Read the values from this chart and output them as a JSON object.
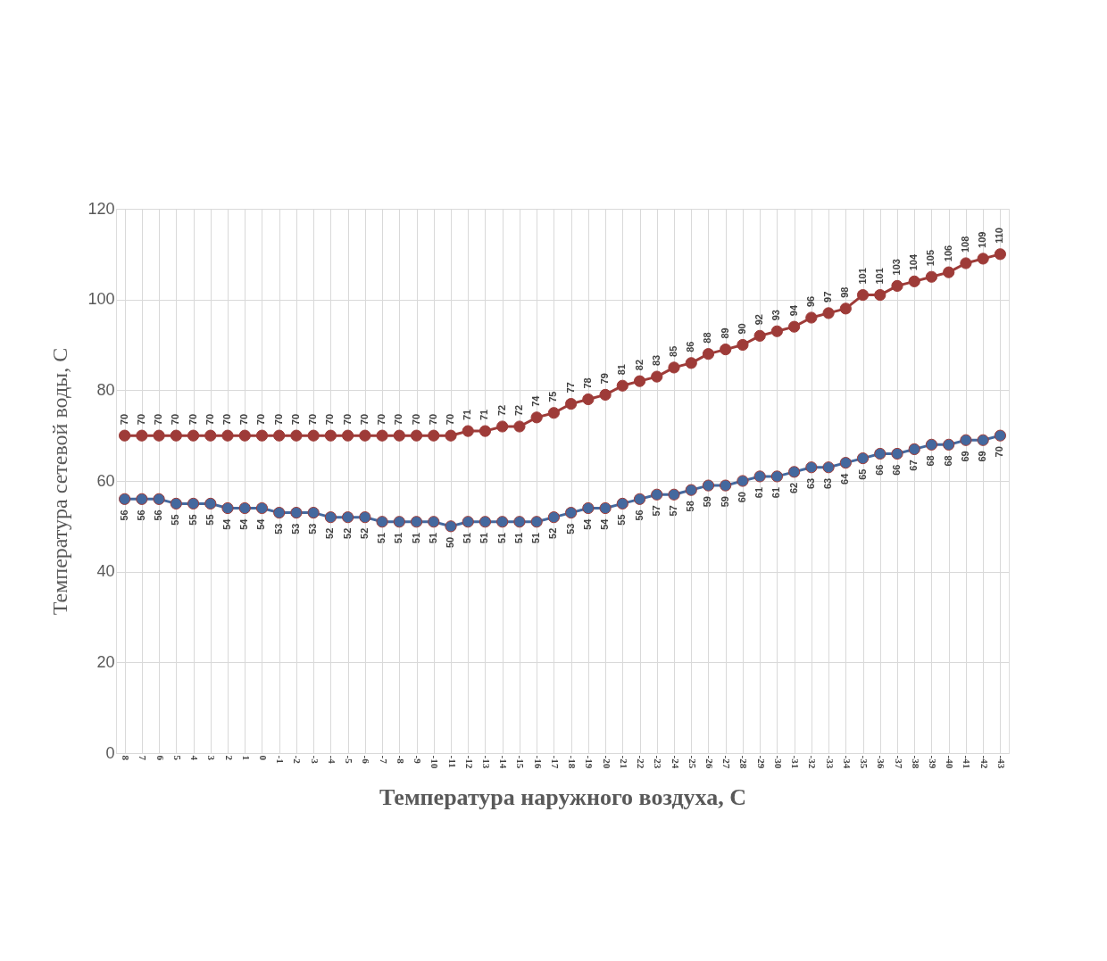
{
  "chart_data": {
    "type": "line",
    "xlabel": "Температура наружного воздуха, С",
    "ylabel": "Температура сетевой воды, С",
    "categories": [
      "8",
      "7",
      "6",
      "5",
      "4",
      "3",
      "2",
      "1",
      "0",
      "-1",
      "-2",
      "-3",
      "-4",
      "-5",
      "-6",
      "-7",
      "-8",
      "-9",
      "-10",
      "-11",
      "-12",
      "-13",
      "-14",
      "-15",
      "-16",
      "-17",
      "-18",
      "-19",
      "-20",
      "-21",
      "-22",
      "-23",
      "-24",
      "-25",
      "-26",
      "-27",
      "-28",
      "-29",
      "-30",
      "-31",
      "-32",
      "-33",
      "-34",
      "-35",
      "-36",
      "-37",
      "-38",
      "-39",
      "-40",
      "-41",
      "-42",
      "-43"
    ],
    "series": [
      {
        "color": "#9e3b38",
        "values": [
          70,
          70,
          70,
          70,
          70,
          70,
          70,
          70,
          70,
          70,
          70,
          70,
          70,
          70,
          70,
          70,
          70,
          70,
          70,
          70,
          71,
          71,
          72,
          72,
          74,
          75,
          77,
          78,
          79,
          81,
          82,
          83,
          85,
          86,
          88,
          89,
          90,
          92,
          93,
          94,
          96,
          97,
          98,
          101,
          101,
          103,
          104,
          105,
          106,
          108,
          109,
          110
        ]
      },
      {
        "color": "#44689e",
        "values": [
          56,
          56,
          56,
          55,
          55,
          55,
          54,
          54,
          54,
          53,
          53,
          53,
          52,
          52,
          52,
          51,
          51,
          51,
          51,
          50,
          51,
          51,
          51,
          51,
          51,
          52,
          53,
          54,
          54,
          55,
          56,
          57,
          57,
          58,
          59,
          59,
          60,
          61,
          61,
          62,
          63,
          63,
          64,
          65,
          66,
          66,
          67,
          68,
          68,
          69,
          69,
          70
        ]
      }
    ],
    "ylim": [
      0,
      120
    ],
    "yticks": [
      0,
      20,
      40,
      60,
      80,
      100,
      120
    ],
    "grid": true,
    "legend": false,
    "marker": "circle",
    "line_style": "solid",
    "data_labels": true
  }
}
